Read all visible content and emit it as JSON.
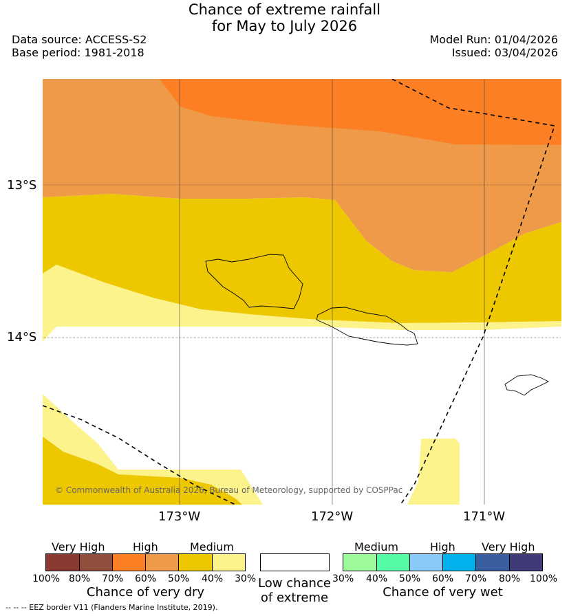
{
  "title_line1": "Chance of extreme rainfall",
  "title_line2": "for May to July 2026",
  "data_source": "Data source: ACCESS-S2",
  "base_period": "Base period: 1981-2018",
  "model_run": "Model Run: 01/04/2026",
  "issued": "Issued: 03/04/2026",
  "copyright": "© Commonwealth of Australia 2026, Bureau of Meteorology, supported by COSPPac",
  "lat_labels": [
    "13°S",
    "14°S"
  ],
  "lon_labels": [
    "173°W",
    "172°W",
    "171°W"
  ],
  "colors": {
    "dry_100_90": "#8b3a32",
    "dry_90_80": "#8f4f3c",
    "dry_70_60": "#fc7f24",
    "dry_60_50": "#ee9a48",
    "dry_50_40": "#edc800",
    "dry_40_30": "#fcf38d",
    "wet_30_40": "#9dfa9a",
    "wet_40_50": "#55fca5",
    "wet_50_60": "#8acaf8",
    "wet_60_70": "#00b2ec",
    "wet_70_80": "#3a5fa0",
    "wet_80_100": "#3f3a78",
    "low": "#ffffff"
  },
  "legend_dry": {
    "categories": [
      "Very High",
      "High",
      "Medium"
    ],
    "percents": [
      "100%",
      "80%",
      "70%",
      "60%",
      "50%",
      "40%",
      "30%"
    ],
    "title": "Chance of very dry"
  },
  "legend_low": {
    "line1": "Low chance",
    "line2": "of extreme"
  },
  "legend_wet": {
    "categories": [
      "Medium",
      "High",
      "Very High"
    ],
    "percents": [
      "30%",
      "40%",
      "50%",
      "60%",
      "70%",
      "80%",
      "100%"
    ],
    "title": "Chance of very wet"
  },
  "eez_note": "--  --  -- EEZ border V11 (Flanders Marine Institute, 2019)."
}
